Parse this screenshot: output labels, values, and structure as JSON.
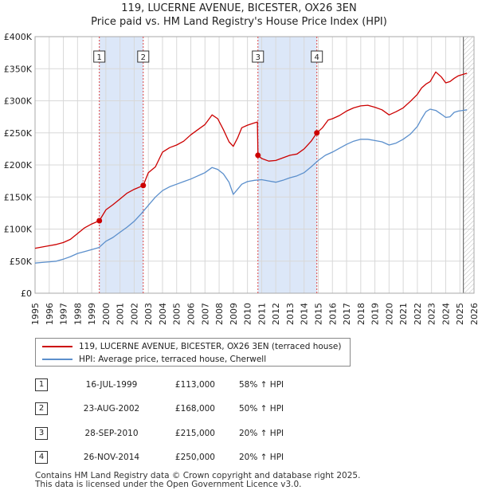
{
  "title": {
    "line1": "119, LUCERNE AVENUE, BICESTER, OX26 3EN",
    "line2": "Price paid vs. HM Land Registry's House Price Index (HPI)"
  },
  "legend": {
    "property_label": "119, LUCERNE AVENUE, BICESTER, OX26 3EN (terraced house)",
    "hpi_label": "HPI: Average price, terraced house, Cherwell"
  },
  "transactions": [
    {
      "n": "1",
      "date": "16-JUL-1999",
      "price": "£113,000",
      "hpi": "58% ↑ HPI"
    },
    {
      "n": "2",
      "date": "23-AUG-2002",
      "price": "£168,000",
      "hpi": "50% ↑ HPI"
    },
    {
      "n": "3",
      "date": "28-SEP-2010",
      "price": "£215,000",
      "hpi": "20% ↑ HPI"
    },
    {
      "n": "4",
      "date": "26-NOV-2014",
      "price": "£250,000",
      "hpi": "20% ↑ HPI"
    }
  ],
  "footer": {
    "line1": "Contains HM Land Registry data © Crown copyright and database right 2025.",
    "line2": "This data is licensed under the Open Government Licence v3.0."
  },
  "colors": {
    "property": "#cc0000",
    "hpi": "#5b8fcc",
    "shade": "#dce7f8",
    "grid": "#d8d8d8",
    "vline": "#dd4444"
  },
  "chart_data": {
    "type": "line",
    "title": "Price paid vs. HM Land Registry's House Price Index (HPI)",
    "xlabel": "",
    "ylabel": "",
    "xlim": [
      1995,
      2026
    ],
    "ylim": [
      0,
      400000
    ],
    "x_ticks": [
      "1995",
      "1996",
      "1997",
      "1998",
      "1999",
      "2000",
      "2001",
      "2002",
      "2003",
      "2004",
      "2005",
      "2006",
      "2007",
      "2008",
      "2009",
      "2010",
      "2011",
      "2012",
      "2013",
      "2014",
      "2015",
      "2016",
      "2017",
      "2018",
      "2019",
      "2020",
      "2021",
      "2022",
      "2023",
      "2024",
      "2025",
      "2026"
    ],
    "y_ticks": [
      {
        "value": 0,
        "label": "£0"
      },
      {
        "value": 50000,
        "label": "£50K"
      },
      {
        "value": 100000,
        "label": "£100K"
      },
      {
        "value": 150000,
        "label": "£150K"
      },
      {
        "value": 200000,
        "label": "£200K"
      },
      {
        "value": 250000,
        "label": "£250K"
      },
      {
        "value": 300000,
        "label": "£300K"
      },
      {
        "value": 350000,
        "label": "£350K"
      },
      {
        "value": 400000,
        "label": "£400K"
      }
    ],
    "shaded_ranges": [
      [
        1999.54,
        2002.64
      ],
      [
        2010.74,
        2014.9
      ]
    ],
    "sales": [
      {
        "label": "1",
        "x": 1999.54,
        "y": 113000
      },
      {
        "label": "2",
        "x": 2002.64,
        "y": 168000
      },
      {
        "label": "3",
        "x": 2010.74,
        "y": 215000
      },
      {
        "label": "4",
        "x": 2014.9,
        "y": 250000
      }
    ],
    "forecast_start": 2025.25,
    "series": [
      {
        "name": "119, LUCERNE AVENUE, BICESTER, OX26 3EN (terraced house)",
        "x": [
          1995.0,
          1995.5,
          1996.0,
          1996.5,
          1997.0,
          1997.5,
          1998.0,
          1998.5,
          1999.0,
          1999.54,
          2000.0,
          2000.5,
          2001.0,
          2001.5,
          2002.0,
          2002.64,
          2003.0,
          2003.5,
          2004.0,
          2004.5,
          2005.0,
          2005.5,
          2006.0,
          2006.5,
          2007.0,
          2007.5,
          2007.9,
          2008.3,
          2008.7,
          2009.0,
          2009.3,
          2009.6,
          2010.0,
          2010.4,
          2010.7,
          2010.74,
          2011.0,
          2011.5,
          2012.0,
          2012.5,
          2013.0,
          2013.5,
          2014.0,
          2014.5,
          2014.9,
          2015.3,
          2015.7,
          2016.0,
          2016.5,
          2017.0,
          2017.5,
          2018.0,
          2018.5,
          2019.0,
          2019.5,
          2020.0,
          2020.5,
          2021.0,
          2021.5,
          2022.0,
          2022.3,
          2022.6,
          2022.9,
          2023.3,
          2023.7,
          2024.0,
          2024.3,
          2024.6,
          2024.9,
          2025.2,
          2025.5
        ],
        "values": [
          70000,
          72000,
          74000,
          76000,
          79000,
          84000,
          93000,
          102000,
          108000,
          113000,
          130000,
          138000,
          147000,
          156000,
          162000,
          168000,
          188000,
          197000,
          220000,
          227000,
          231000,
          237000,
          247000,
          255000,
          263000,
          278000,
          272000,
          255000,
          236000,
          229000,
          242000,
          258000,
          262000,
          265000,
          267000,
          215000,
          210000,
          206000,
          207000,
          211000,
          215000,
          217000,
          225000,
          237000,
          250000,
          258000,
          270000,
          272000,
          277000,
          284000,
          289000,
          292000,
          293000,
          290000,
          286000,
          278000,
          283000,
          289000,
          299000,
          310000,
          320000,
          326000,
          330000,
          345000,
          337000,
          328000,
          330000,
          335000,
          339000,
          341000,
          343000
        ]
      },
      {
        "name": "HPI: Average price, terraced house, Cherwell",
        "x": [
          1995.0,
          1995.5,
          1996.0,
          1996.5,
          1997.0,
          1997.5,
          1998.0,
          1998.5,
          1999.0,
          1999.5,
          2000.0,
          2000.5,
          2001.0,
          2001.5,
          2002.0,
          2002.5,
          2003.0,
          2003.5,
          2004.0,
          2004.5,
          2005.0,
          2005.5,
          2006.0,
          2006.5,
          2007.0,
          2007.5,
          2007.9,
          2008.3,
          2008.7,
          2009.0,
          2009.3,
          2009.6,
          2010.0,
          2010.5,
          2011.0,
          2011.5,
          2012.0,
          2012.5,
          2013.0,
          2013.5,
          2014.0,
          2014.5,
          2015.0,
          2015.5,
          2016.0,
          2016.5,
          2017.0,
          2017.5,
          2018.0,
          2018.5,
          2019.0,
          2019.5,
          2020.0,
          2020.5,
          2021.0,
          2021.5,
          2022.0,
          2022.3,
          2022.6,
          2022.9,
          2023.3,
          2023.7,
          2024.0,
          2024.3,
          2024.6,
          2024.9,
          2025.2,
          2025.5
        ],
        "values": [
          47000,
          48000,
          49000,
          50000,
          53000,
          57000,
          62000,
          65000,
          68000,
          71000,
          81000,
          87000,
          95000,
          103000,
          112000,
          124000,
          137000,
          150000,
          160000,
          166000,
          170000,
          174000,
          178000,
          183000,
          188000,
          196000,
          193000,
          186000,
          173000,
          154000,
          162000,
          170000,
          174000,
          176000,
          177000,
          175000,
          173000,
          176000,
          180000,
          183000,
          188000,
          197000,
          207000,
          215000,
          220000,
          226000,
          232000,
          237000,
          240000,
          240000,
          238000,
          236000,
          231000,
          234000,
          240000,
          248000,
          260000,
          272000,
          283000,
          287000,
          285000,
          279000,
          274000,
          275000,
          282000,
          284000,
          285000,
          286000
        ]
      }
    ]
  }
}
